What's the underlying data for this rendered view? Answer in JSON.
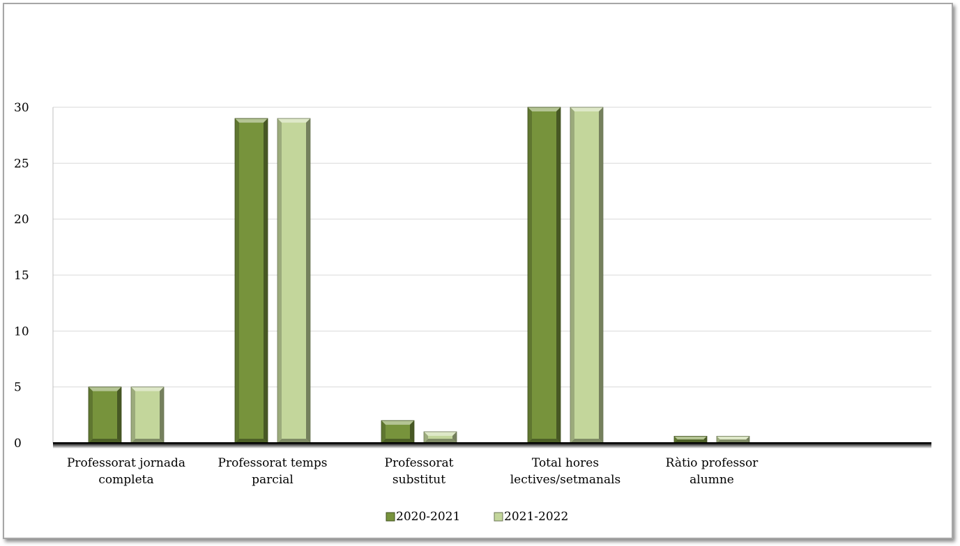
{
  "chart_data": {
    "type": "bar",
    "title": "",
    "xlabel": "",
    "ylabel": "",
    "ylim": [
      0,
      30
    ],
    "yticks": [
      0,
      5,
      10,
      15,
      20,
      25,
      30
    ],
    "grid": true,
    "legend_position": "bottom",
    "categories": [
      [
        "Professorat jornada",
        "completa"
      ],
      [
        "Professorat temps",
        "parcial"
      ],
      [
        "Professorat",
        "substitut"
      ],
      [
        "Total hores",
        "lectives/setmanals"
      ],
      [
        "Ràtio professor",
        "alumne"
      ]
    ],
    "series": [
      {
        "name": "2020-2021",
        "color": "#77933c",
        "values": [
          5,
          29,
          2,
          30,
          0.6
        ]
      },
      {
        "name": "2021-2022",
        "color": "#c3d69b",
        "values": [
          5,
          29,
          1,
          30,
          0.6
        ]
      }
    ]
  }
}
